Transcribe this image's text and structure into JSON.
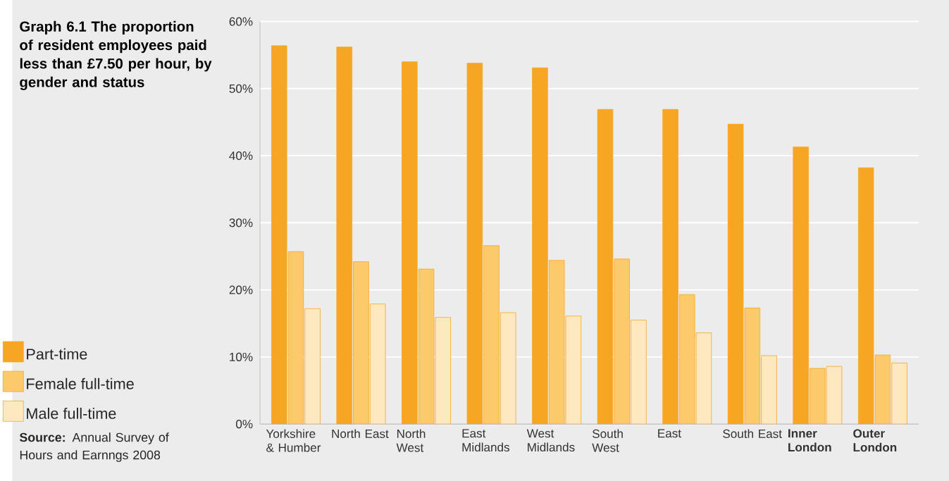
{
  "chart_data": {
    "type": "bar",
    "title": "Graph 6.1 The proportion of resident employees paid less than £7.50 per hour, by gender and status",
    "categories": [
      "Yorkshire & Humber",
      "North East",
      "North West",
      "East Midlands",
      "West Midlands",
      "South West",
      "East",
      "South East",
      "**Inner London**",
      "**Outer London**"
    ],
    "series": [
      {
        "name": "Part-time",
        "color": "#f6a623",
        "values": [
          56.4,
          56.2,
          54.0,
          53.8,
          53.1,
          46.9,
          46.9,
          44.7,
          41.3,
          38.2
        ]
      },
      {
        "name": "Female full-time",
        "color": "#fdca6b",
        "values": [
          25.7,
          24.2,
          23.1,
          26.6,
          24.4,
          24.6,
          19.3,
          17.3,
          8.3,
          10.3
        ]
      },
      {
        "name": "Male full-time",
        "color": "#fee8bf",
        "values": [
          17.2,
          17.9,
          15.9,
          16.6,
          16.1,
          15.5,
          13.6,
          10.2,
          8.6,
          9.1
        ]
      }
    ],
    "ylim": [
      0,
      60
    ],
    "yticks": [
      {
        "value": 0,
        "label": "0%"
      },
      {
        "value": 10,
        "label": "10%"
      },
      {
        "value": 20,
        "label": "20%"
      },
      {
        "value": 30,
        "label": "30%"
      },
      {
        "value": 40,
        "label": "40%"
      },
      {
        "value": 50,
        "label": "50%"
      },
      {
        "value": 60,
        "label": "60%"
      }
    ],
    "grid": "y",
    "legend": "left",
    "annotations": [
      "**Source:** Annual Survey of Hours and Earnngs 2008"
    ]
  }
}
